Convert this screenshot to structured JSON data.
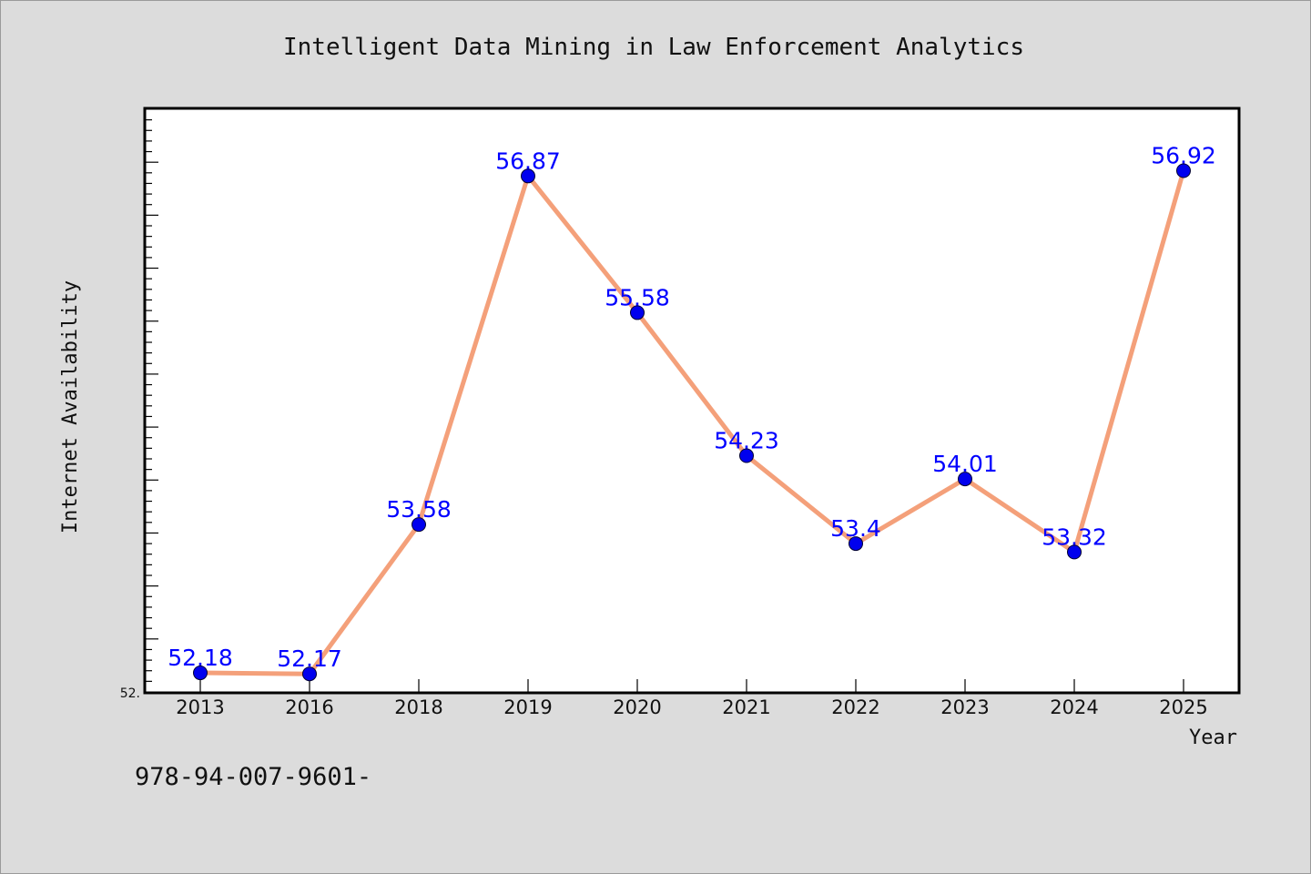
{
  "chart_data": {
    "type": "line",
    "title": "Intelligent Data Mining in Law Enforcement Analytics",
    "xlabel": "Year",
    "ylabel": "Internet Availability",
    "categories": [
      "2013",
      "2016",
      "2018",
      "2019",
      "2020",
      "2021",
      "2022",
      "2023",
      "2024",
      "2025"
    ],
    "series": [
      {
        "values": [
          52.18,
          52.17,
          53.58,
          56.87,
          55.58,
          54.23,
          53.4,
          54.01,
          53.32,
          56.92
        ],
        "labels": [
          "52.18",
          "52.17",
          "53.58",
          "56.87",
          "55.58",
          "54.23",
          "53.4",
          "54.01",
          "53.32",
          "56.92"
        ]
      }
    ],
    "ylim": [
      52.0,
      57.5
    ],
    "y_tick_step": 0.5,
    "y_minor_step": 0.1,
    "y_tick_label_shown": "52.",
    "grid": false,
    "legend": "none",
    "colors": {
      "line": "#f4a07a",
      "marker": "#0000ee",
      "label": "#0000ff",
      "background": "#dcdcdc",
      "plot_background": "#ffffff"
    }
  },
  "footnote": "978-94-007-9601-"
}
